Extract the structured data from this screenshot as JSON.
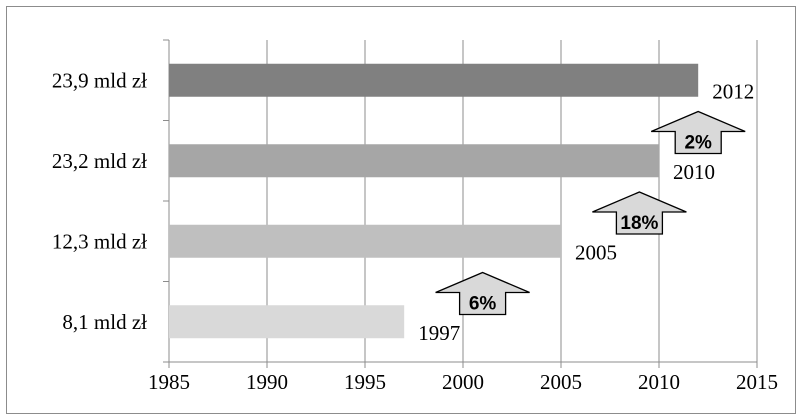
{
  "chart_data": {
    "type": "bar",
    "orientation": "horizontal",
    "categories": [
      "8,1 mld zł",
      "12,3 mld zł",
      "23,2 mld zł",
      "23,9 mld zł"
    ],
    "values": [
      1997,
      2005,
      2010,
      2012
    ],
    "data_labels": [
      "1997",
      "2005",
      "2010",
      "2012"
    ],
    "bar_colors": [
      "#d9d9d9",
      "#bfbfbf",
      "#a6a6a6",
      "#808080"
    ],
    "xlim": [
      1985,
      2015
    ],
    "xticks": [
      1985,
      1990,
      1995,
      2000,
      2005,
      2010,
      2015
    ],
    "xtick_labels": [
      "1985",
      "1990",
      "1995",
      "2000",
      "2005",
      "2010",
      "2015"
    ],
    "grid": "vertical",
    "title": "",
    "xlabel": "",
    "ylabel": "",
    "annotations": [
      {
        "text": "6%",
        "type": "up-arrow",
        "x": 2001,
        "between": [
          "8,1 mld zł",
          "12,3 mld zł"
        ]
      },
      {
        "text": "18%",
        "type": "up-arrow",
        "x": 2009,
        "between": [
          "12,3 mld zł",
          "23,2 mld zł"
        ]
      },
      {
        "text": "2%",
        "type": "up-arrow",
        "x": 2012,
        "between": [
          "23,2 mld zł",
          "23,9 mld zł"
        ]
      }
    ],
    "arrow_fill": "#d9d9d9"
  }
}
